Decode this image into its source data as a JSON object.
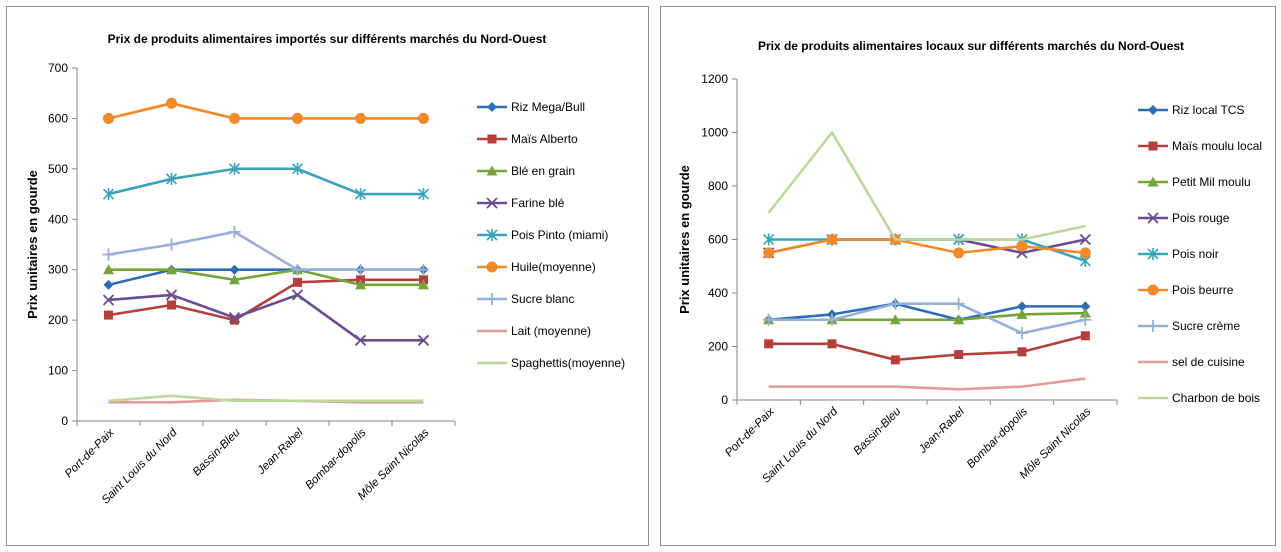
{
  "chart_data": [
    {
      "type": "line",
      "title": "Prix de produits  alimentaires importés sur différents marchés du Nord-Ouest",
      "xlabel": "",
      "ylabel": "Prix unitaires en gourde",
      "ylim": [
        0,
        700
      ],
      "yticks": [
        0,
        100,
        200,
        300,
        400,
        500,
        600,
        700
      ],
      "grid": false,
      "legend": "right",
      "categories": [
        "Port-de-Paix",
        "Saint Louis du Nord",
        "Bassin-Bleu",
        "Jean-Rabel",
        "Bombar-dopolis",
        "Môle Saint Nicolas"
      ],
      "series": [
        {
          "name": "Riz Mega/Bull",
          "color": "#2e6db5",
          "marker": "diamond",
          "values": [
            270,
            300,
            300,
            300,
            300,
            300
          ]
        },
        {
          "name": "Maïs Alberto",
          "color": "#b3403c",
          "marker": "square",
          "values": [
            210,
            230,
            200,
            275,
            280,
            280
          ]
        },
        {
          "name": "Blé en grain",
          "color": "#77a33c",
          "marker": "triangle",
          "values": [
            300,
            300,
            280,
            300,
            270,
            270
          ]
        },
        {
          "name": "Farine blé",
          "color": "#6a4b8f",
          "marker": "x",
          "values": [
            240,
            250,
            205,
            250,
            160,
            160
          ]
        },
        {
          "name": "Pois Pinto (miami)",
          "color": "#3aa3b8",
          "marker": "star",
          "values": [
            450,
            480,
            500,
            500,
            450,
            450
          ]
        },
        {
          "name": "Huile(moyenne)",
          "color": "#f08a2b",
          "marker": "circle",
          "values": [
            600,
            630,
            600,
            600,
            600,
            600
          ]
        },
        {
          "name": "Sucre blanc",
          "color": "#98b0d8",
          "marker": "plus",
          "values": [
            330,
            350,
            375,
            300,
            300,
            300
          ]
        },
        {
          "name": "Lait (moyenne)",
          "color": "#e59a9a",
          "marker": "none",
          "values": [
            37,
            37,
            42,
            40,
            37,
            37
          ]
        },
        {
          "name": "Spaghettis(moyenne)",
          "color": "#bcd89a",
          "marker": "none",
          "values": [
            40,
            50,
            40,
            40,
            40,
            40
          ]
        }
      ]
    },
    {
      "type": "line",
      "title": "Prix de produits  alimentaires locaux sur différents marchés du Nord-Ouest",
      "xlabel": "",
      "ylabel": "Prix unitaires en gourde",
      "ylim": [
        0,
        1200
      ],
      "yticks": [
        0,
        200,
        400,
        600,
        800,
        1000,
        1200
      ],
      "grid": false,
      "legend": "right",
      "categories": [
        "Port-de-Paix",
        "Saint Louis du Nord",
        "Bassin-Bleu",
        "Jean-Rabel",
        "Bombar-dopolis",
        "Môle Saint Nicolas"
      ],
      "series": [
        {
          "name": "Riz local TCS",
          "color": "#2e6db5",
          "marker": "diamond",
          "values": [
            300,
            320,
            360,
            300,
            350,
            350
          ]
        },
        {
          "name": "Maïs moulu local",
          "color": "#b3403c",
          "marker": "square",
          "values": [
            210,
            210,
            150,
            170,
            180,
            240
          ]
        },
        {
          "name": "Petit Mil moulu",
          "color": "#77a33c",
          "marker": "triangle",
          "values": [
            300,
            300,
            300,
            300,
            320,
            325
          ]
        },
        {
          "name": "Pois rouge",
          "color": "#6a4b8f",
          "marker": "x",
          "values": [
            550,
            600,
            600,
            600,
            550,
            600
          ]
        },
        {
          "name": "Pois noir",
          "color": "#3aa3b8",
          "marker": "star",
          "values": [
            600,
            600,
            600,
            600,
            600,
            520
          ]
        },
        {
          "name": "Pois beurre",
          "color": "#f08a2b",
          "marker": "circle",
          "values": [
            550,
            600,
            600,
            550,
            575,
            550
          ]
        },
        {
          "name": "Sucre crème",
          "color": "#98b0d8",
          "marker": "plus",
          "values": [
            300,
            300,
            360,
            360,
            250,
            300
          ]
        },
        {
          "name": "sel de cuisine",
          "color": "#e59a9a",
          "marker": "none",
          "values": [
            50,
            50,
            50,
            40,
            50,
            80
          ]
        },
        {
          "name": "Charbon de bois",
          "color": "#bcd89a",
          "marker": "none",
          "values": [
            700,
            1000,
            600,
            600,
            600,
            650
          ]
        }
      ]
    }
  ]
}
